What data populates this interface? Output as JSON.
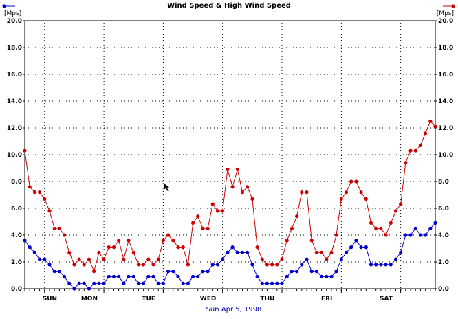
{
  "chart_data": {
    "type": "line",
    "title": "Wind Speed & High Wind Speed",
    "ylabel_left": "[Mps]",
    "ylabel_right": "[Mps]",
    "date_label": "Sun Apr 5, 1998",
    "ylim": [
      0,
      20
    ],
    "yticks": [
      "0.0",
      "2.0",
      "4.0",
      "6.0",
      "8.0",
      "10.0",
      "12.0",
      "14.0",
      "16.0",
      "18.0",
      "20.0"
    ],
    "day_labels": [
      "SUN",
      "MON",
      "TUE",
      "WED",
      "THU",
      "FRI",
      "SAT"
    ],
    "grid": true,
    "colors": {
      "high": "#cc0000",
      "wind": "#0000cc",
      "date": "#0000aa",
      "marker_left": "#0000cc",
      "marker_right": "#cc0000"
    },
    "series": [
      {
        "key": "high",
        "values": [
          10.3,
          7.6,
          7.2,
          7.2,
          6.7,
          5.8,
          4.5,
          4.5,
          4.0,
          2.7,
          1.8,
          2.2,
          1.8,
          2.2,
          1.3,
          2.7,
          2.2,
          3.1,
          3.1,
          3.6,
          2.2,
          3.6,
          2.7,
          1.8,
          1.8,
          2.2,
          1.8,
          2.2,
          3.6,
          4.0,
          3.6,
          3.1,
          3.1,
          1.8,
          4.9,
          5.4,
          4.5,
          4.5,
          6.3,
          5.8,
          5.8,
          8.9,
          7.6,
          8.9,
          7.2,
          7.6,
          6.7,
          3.1,
          2.2,
          1.8,
          1.8,
          1.8,
          2.2,
          3.6,
          4.5,
          5.4,
          7.2,
          7.2,
          3.6,
          2.7,
          2.7,
          2.2,
          2.7,
          4.0,
          6.7,
          7.2,
          8.0,
          8.0,
          7.2,
          6.7,
          4.9,
          4.5,
          4.5,
          4.0,
          4.9,
          5.8,
          6.3,
          9.4,
          10.3,
          10.3,
          10.7,
          11.6,
          12.5,
          12.1
        ]
      },
      {
        "key": "wind",
        "values": [
          3.6,
          3.1,
          2.7,
          2.2,
          2.2,
          1.8,
          1.3,
          1.3,
          0.9,
          0.4,
          0.0,
          0.4,
          0.4,
          0.0,
          0.4,
          0.4,
          0.4,
          0.9,
          0.9,
          0.9,
          0.4,
          0.9,
          0.9,
          0.4,
          0.4,
          0.9,
          0.9,
          0.4,
          0.4,
          1.3,
          1.3,
          0.9,
          0.4,
          0.4,
          0.9,
          0.9,
          1.3,
          1.3,
          1.8,
          1.8,
          2.2,
          2.7,
          3.1,
          2.7,
          2.7,
          2.7,
          1.8,
          0.9,
          0.4,
          0.4,
          0.4,
          0.4,
          0.4,
          0.9,
          1.3,
          1.3,
          1.8,
          2.2,
          1.3,
          1.3,
          0.9,
          0.9,
          0.9,
          1.3,
          2.2,
          2.7,
          3.1,
          3.6,
          3.1,
          3.1,
          1.8,
          1.8,
          1.8,
          1.8,
          1.8,
          2.2,
          2.7,
          4.0,
          4.0,
          4.5,
          4.0,
          4.0,
          4.5,
          4.9
        ]
      }
    ]
  }
}
